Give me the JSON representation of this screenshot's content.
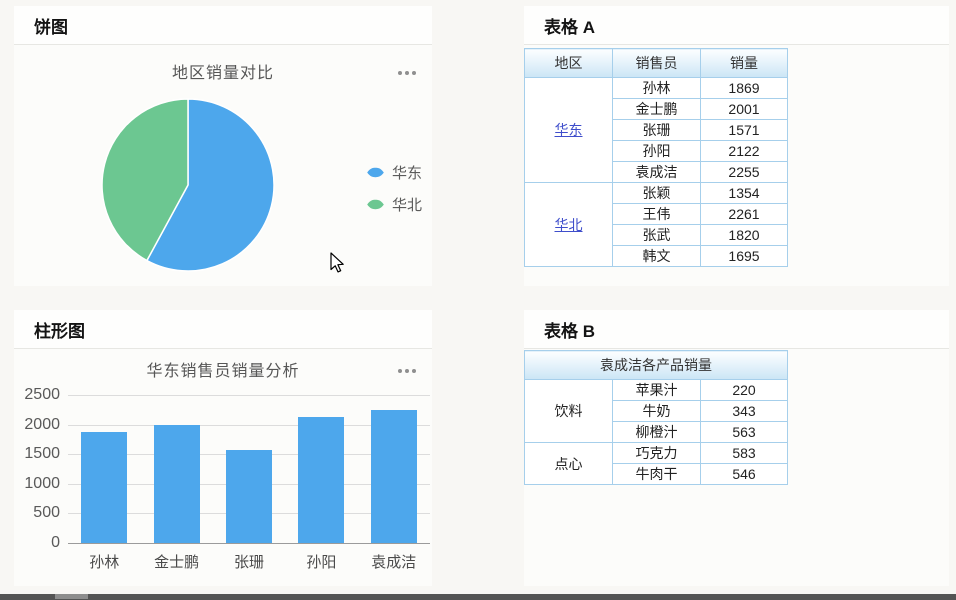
{
  "pie_panel": {
    "header": "饼图",
    "menu_icon": "ellipsis-icon",
    "chart_data": {
      "type": "pie",
      "title": "地区销量对比",
      "legend_position": "right",
      "series": [
        {
          "name": "华东",
          "value": 9818,
          "color": "#4da7ec"
        },
        {
          "name": "华北",
          "value": 7130,
          "color": "#6cc791"
        }
      ]
    }
  },
  "bar_panel": {
    "header": "柱形图",
    "menu_icon": "ellipsis-icon",
    "chart_data": {
      "type": "bar",
      "title": "华东销售员销量分析",
      "categories": [
        "孙林",
        "金士鹏",
        "张珊",
        "孙阳",
        "袁成洁"
      ],
      "values": [
        1869,
        2001,
        1571,
        2122,
        2255
      ],
      "ylim": [
        0,
        2500
      ],
      "yticks": [
        0,
        500,
        1000,
        1500,
        2000,
        2500
      ],
      "grid": true,
      "bar_color": "#4da7ec"
    }
  },
  "table_a": {
    "header": "表格 A",
    "columns": [
      "地区",
      "销售员",
      "销量"
    ],
    "groups": [
      {
        "region": "华东",
        "is_link": true,
        "rows": [
          [
            "孙林",
            "1869"
          ],
          [
            "金士鹏",
            "2001"
          ],
          [
            "张珊",
            "1571"
          ],
          [
            "孙阳",
            "2122"
          ],
          [
            "袁成洁",
            "2255"
          ]
        ]
      },
      {
        "region": "华北",
        "is_link": true,
        "rows": [
          [
            "张颖",
            "1354"
          ],
          [
            "王伟",
            "2261"
          ],
          [
            "张武",
            "1820"
          ],
          [
            "韩文",
            "1695"
          ]
        ]
      }
    ]
  },
  "table_b": {
    "header": "表格 B",
    "title_row": "袁成洁各产品销量",
    "groups": [
      {
        "category": "饮料",
        "rows": [
          [
            "苹果汁",
            "220"
          ],
          [
            "牛奶",
            "343"
          ],
          [
            "柳橙汁",
            "563"
          ]
        ]
      },
      {
        "category": "点心",
        "rows": [
          [
            "巧克力",
            "583"
          ],
          [
            "牛肉干",
            "546"
          ]
        ]
      }
    ]
  },
  "colors": {
    "accent_blue": "#4da7ec",
    "accent_green": "#6cc791",
    "table_border": "#a6cfeb",
    "link": "#3f4ecb"
  }
}
